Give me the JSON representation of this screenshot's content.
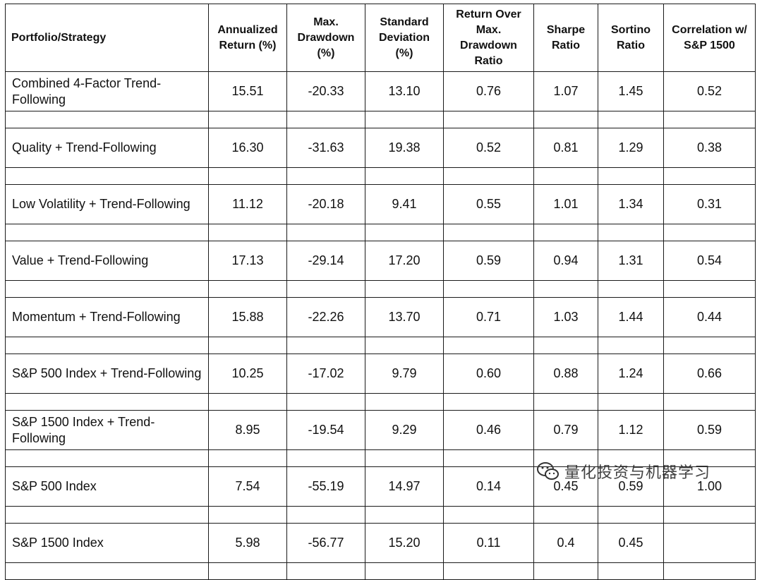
{
  "table": {
    "headers": [
      "Portfolio/Strategy",
      "Annualized Return (%)",
      "Max. Drawdown (%)",
      "Standard Deviation (%)",
      "Return Over Max. Drawdown Ratio",
      "Sharpe Ratio",
      "Sortino Ratio",
      "Correlation w/ S&P 1500"
    ],
    "rows": [
      {
        "name": "Combined 4-Factor Trend-Following",
        "values": [
          "15.51",
          "-20.33",
          "13.10",
          "0.76",
          "1.07",
          "1.45",
          "0.52"
        ]
      },
      {
        "name": "Quality + Trend-Following",
        "values": [
          "16.30",
          "-31.63",
          "19.38",
          "0.52",
          "0.81",
          "1.29",
          "0.38"
        ]
      },
      {
        "name": "Low Volatility + Trend-Following",
        "values": [
          "11.12",
          "-20.18",
          "9.41",
          "0.55",
          "1.01",
          "1.34",
          "0.31"
        ]
      },
      {
        "name": "Value + Trend-Following",
        "values": [
          "17.13",
          "-29.14",
          "17.20",
          "0.59",
          "0.94",
          "1.31",
          "0.54"
        ]
      },
      {
        "name": "Momentum + Trend-Following",
        "values": [
          "15.88",
          "-22.26",
          "13.70",
          "0.71",
          "1.03",
          "1.44",
          "0.44"
        ]
      },
      {
        "name": "S&P 500 Index + Trend-Following",
        "values": [
          "10.25",
          "-17.02",
          "9.79",
          "0.60",
          "0.88",
          "1.24",
          "0.66"
        ]
      },
      {
        "name": "S&P 1500 Index + Trend-Following",
        "values": [
          "8.95",
          "-19.54",
          "9.29",
          "0.46",
          "0.79",
          "1.12",
          "0.59"
        ]
      },
      {
        "name": "S&P 500 Index",
        "values": [
          "7.54",
          "-55.19",
          "14.97",
          "0.14",
          "0.45",
          "0.59",
          "1.00"
        ]
      },
      {
        "name": "S&P 1500 Index",
        "values": [
          "5.98",
          "-56.77",
          "15.20",
          "0.11",
          "0.4",
          "0.45",
          ""
        ]
      }
    ]
  },
  "watermark": {
    "icon": "wechat-icon",
    "text": "量化投资与机器学习"
  }
}
